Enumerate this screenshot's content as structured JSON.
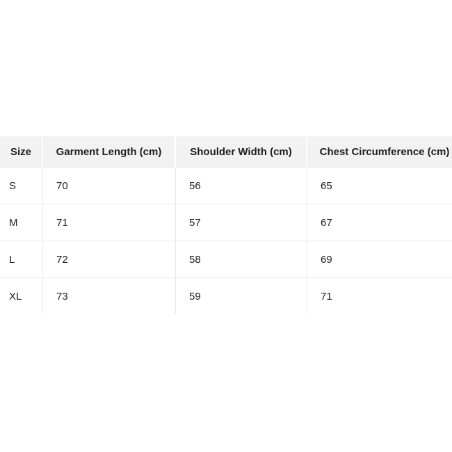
{
  "colors": {
    "page_background": "#ffffff",
    "header_background": "#f2f2f2",
    "border": "#e9e9e9",
    "text": "#222222"
  },
  "table": {
    "columns": [
      "Size",
      "Garment Length (cm)",
      "Shoulder Width (cm)",
      "Chest Circumference (cm)"
    ],
    "rows": [
      [
        "S",
        "70",
        "56",
        "65"
      ],
      [
        "M",
        "71",
        "57",
        "67"
      ],
      [
        "L",
        "72",
        "58",
        "69"
      ],
      [
        "XL",
        "73",
        "59",
        "71"
      ]
    ]
  },
  "chart_data": {
    "type": "table",
    "title": "",
    "columns": [
      "Size",
      "Garment Length (cm)",
      "Shoulder Width (cm)",
      "Chest Circumference (cm)"
    ],
    "rows": [
      {
        "size": "S",
        "garment_length_cm": 70,
        "shoulder_width_cm": 56,
        "chest_circumference_cm": 65
      },
      {
        "size": "M",
        "garment_length_cm": 71,
        "shoulder_width_cm": 57,
        "chest_circumference_cm": 67
      },
      {
        "size": "L",
        "garment_length_cm": 72,
        "shoulder_width_cm": 58,
        "chest_circumference_cm": 69
      },
      {
        "size": "XL",
        "garment_length_cm": 73,
        "shoulder_width_cm": 59,
        "chest_circumference_cm": 71
      }
    ],
    "layout": {
      "header_position": "top",
      "grid": true,
      "clipped_edges": [
        "right",
        "bottom"
      ]
    }
  }
}
